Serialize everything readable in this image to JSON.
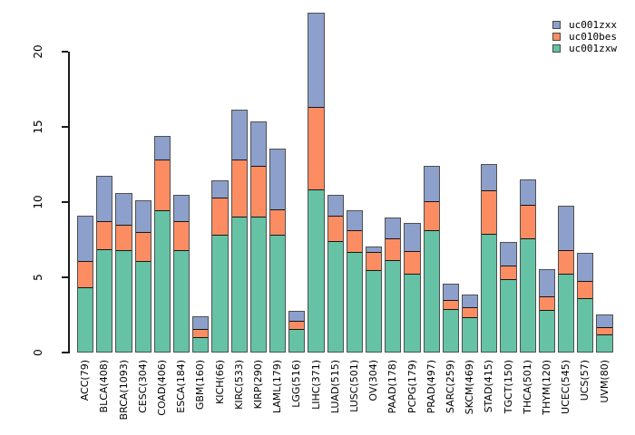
{
  "chart_data": {
    "type": "bar",
    "stacked": true,
    "title": "",
    "xlabel": "",
    "ylabel": "",
    "grid": false,
    "legend_position": "top-right",
    "yticks": [
      0,
      5,
      10,
      15,
      20
    ],
    "ylim": [
      0,
      22.5
    ],
    "categories": [
      "ACC(79)",
      "BLCA(408)",
      "BRCA(1093)",
      "CESC(304)",
      "COAD(406)",
      "ESCA(184)",
      "GBM(160)",
      "KICH(66)",
      "KIRC(533)",
      "KIRP(290)",
      "LAML(179)",
      "LGG(516)",
      "LIHC(371)",
      "LUAD(515)",
      "LUSC(501)",
      "OV(304)",
      "PAAD(178)",
      "PCPG(179)",
      "PRAD(497)",
      "SARC(259)",
      "SKCM(469)",
      "STAD(415)",
      "TGCT(150)",
      "THCA(501)",
      "THYM(120)",
      "UCEC(545)",
      "UCS(57)",
      "UVM(80)"
    ],
    "stack_order": "bottom-to-top",
    "series": [
      {
        "name": "uc001zxw",
        "color": "#66C2A5",
        "values": [
          4.25,
          6.8,
          6.75,
          6.05,
          9.4,
          6.75,
          0.95,
          7.8,
          8.95,
          9.0,
          7.75,
          1.5,
          10.8,
          7.35,
          6.6,
          5.45,
          6.1,
          5.2,
          8.05,
          2.85,
          2.3,
          7.85,
          4.8,
          7.55,
          2.75,
          5.15,
          3.55,
          1.15
        ]
      },
      {
        "name": "uc010bes",
        "color": "#FC8D62",
        "values": [
          1.8,
          1.9,
          1.7,
          1.9,
          3.35,
          1.95,
          0.55,
          2.45,
          3.8,
          3.35,
          1.7,
          0.55,
          5.45,
          1.7,
          1.5,
          1.15,
          1.45,
          1.5,
          1.95,
          0.6,
          0.65,
          2.85,
          0.9,
          2.2,
          0.95,
          1.6,
          1.15,
          0.5
        ]
      },
      {
        "name": "uc001zxx",
        "color": "#8DA0CB",
        "values": [
          2.95,
          2.9,
          2.05,
          2.05,
          1.5,
          1.65,
          0.8,
          1.05,
          3.25,
          2.9,
          4.0,
          0.6,
          6.2,
          1.3,
          1.25,
          0.3,
          1.3,
          1.8,
          2.3,
          1.0,
          0.8,
          1.7,
          1.55,
          1.65,
          1.7,
          2.9,
          1.8,
          0.75
        ]
      }
    ],
    "legend": [
      {
        "label": "uc001zxx",
        "color": "#8DA0CB"
      },
      {
        "label": "uc010bes",
        "color": "#FC8D62"
      },
      {
        "label": "uc001zxw",
        "color": "#66C2A5"
      }
    ]
  }
}
